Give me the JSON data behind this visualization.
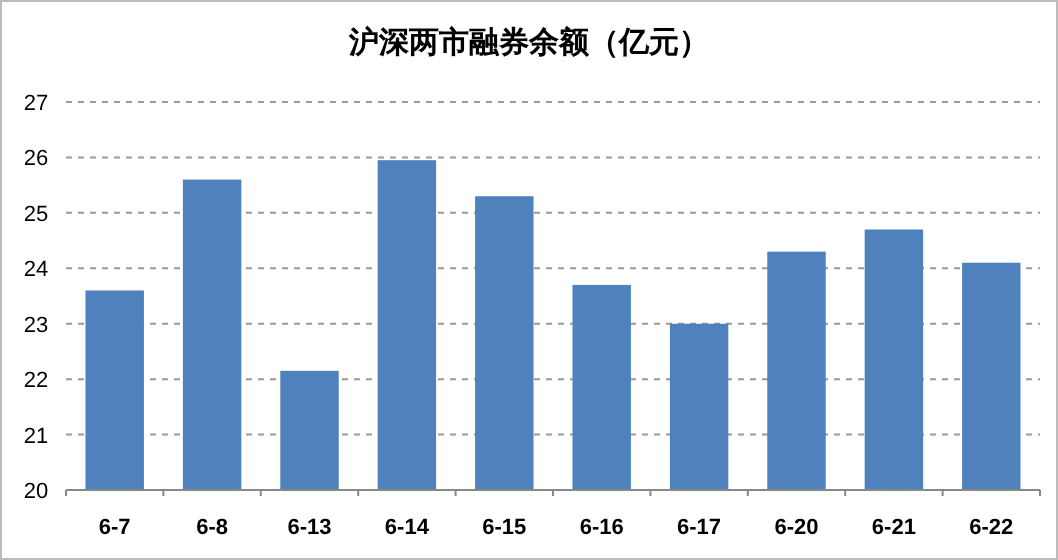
{
  "chart_data": {
    "type": "bar",
    "title": "沪深两市融券余额（亿元）",
    "categories": [
      "6-7",
      "6-8",
      "6-13",
      "6-14",
      "6-15",
      "6-16",
      "6-17",
      "6-20",
      "6-21",
      "6-22"
    ],
    "values": [
      23.6,
      25.6,
      22.15,
      25.95,
      25.3,
      23.7,
      23.0,
      24.3,
      24.7,
      24.1
    ],
    "color": "#4f81bd",
    "ylim": [
      20,
      27
    ],
    "yticks": [
      20,
      21,
      22,
      23,
      24,
      25,
      26,
      27
    ],
    "grid": "y"
  }
}
